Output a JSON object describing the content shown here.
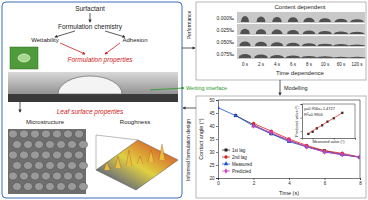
{
  "left_panel": {
    "surfactant": "Surfactant",
    "chemistry": "Formulation chemistry",
    "wettability": "Wettability",
    "adhesion": "Adhesion",
    "formulation_properties": "Formulation properties",
    "wetting_interface": "Wetting interface",
    "leaf_surface_properties": "Leaf surface properties",
    "microstructure": "Microstructure",
    "roughness": "Roughness"
  },
  "arrows": {
    "performance": "Performance",
    "modelling": "Modelling",
    "informed": "Informed formulation design"
  },
  "performance_panel": {
    "title": "Content dependent",
    "contents": [
      "0.000‰",
      "0.025‰",
      "0.050‰",
      "0.075‰"
    ],
    "times": [
      "0 s",
      "2 s",
      "4 s",
      "6 s",
      "8 s",
      "10 s",
      "60 s",
      "120 s"
    ],
    "footer": "Time dependence"
  },
  "chart_data": [
    {
      "type": "line",
      "x_label": "Time (s)",
      "y_label": "Contact angle (°)",
      "x": [
        0,
        1,
        2,
        3,
        4,
        5,
        6,
        7,
        8
      ],
      "xlim": [
        0,
        8
      ],
      "ylim": [
        20,
        50
      ],
      "xticks": [
        0,
        2,
        4,
        6,
        8
      ],
      "yticks": [
        20,
        25,
        30,
        35,
        40,
        45,
        50
      ],
      "legend": "lower left",
      "series": [
        {
          "name": "1st lag",
          "color": "#222222",
          "marker": "square",
          "values": [
            null,
            44,
            40.5,
            37,
            34.5,
            32,
            30.5,
            29,
            28
          ]
        },
        {
          "name": "2nd lag",
          "color": "#e02020",
          "marker": "circle",
          "values": [
            null,
            null,
            41,
            38,
            35,
            32.5,
            30.5,
            29.5,
            28
          ]
        },
        {
          "name": "Measured",
          "color": "#2050d0",
          "marker": "triangle",
          "values": [
            47,
            44,
            40,
            37,
            34,
            32,
            30,
            29,
            28
          ]
        },
        {
          "name": "Predicted",
          "color": "#d040c0",
          "marker": "diamond",
          "values": [
            null,
            null,
            40,
            37.5,
            34.5,
            32,
            30,
            29,
            28
          ]
        }
      ]
    },
    {
      "type": "scatter",
      "x_label": "Measured value (°)",
      "y_label": "Predicted value (°)",
      "annotations": [
        "y=0.956x+1.4727",
        "R²=0.9904"
      ],
      "x": [
        28,
        30,
        32,
        34.5,
        37,
        40,
        44
      ],
      "xlim": [
        25,
        50
      ],
      "ylim": [
        25,
        50
      ],
      "xticks": [
        30,
        40,
        50
      ],
      "yticks": [
        30,
        40,
        50
      ],
      "tick_labels": false,
      "series": [
        {
          "color": "#222222",
          "marker": "square",
          "values": [
            28,
            29.6,
            32.1,
            34.3,
            37,
            39.5,
            43.5
          ]
        },
        {
          "type": "line",
          "color": "#e02020",
          "values": [
            28.3,
            30.2,
            32.1,
            34.5,
            36.9,
            39.7,
            43.5
          ]
        }
      ]
    }
  ]
}
